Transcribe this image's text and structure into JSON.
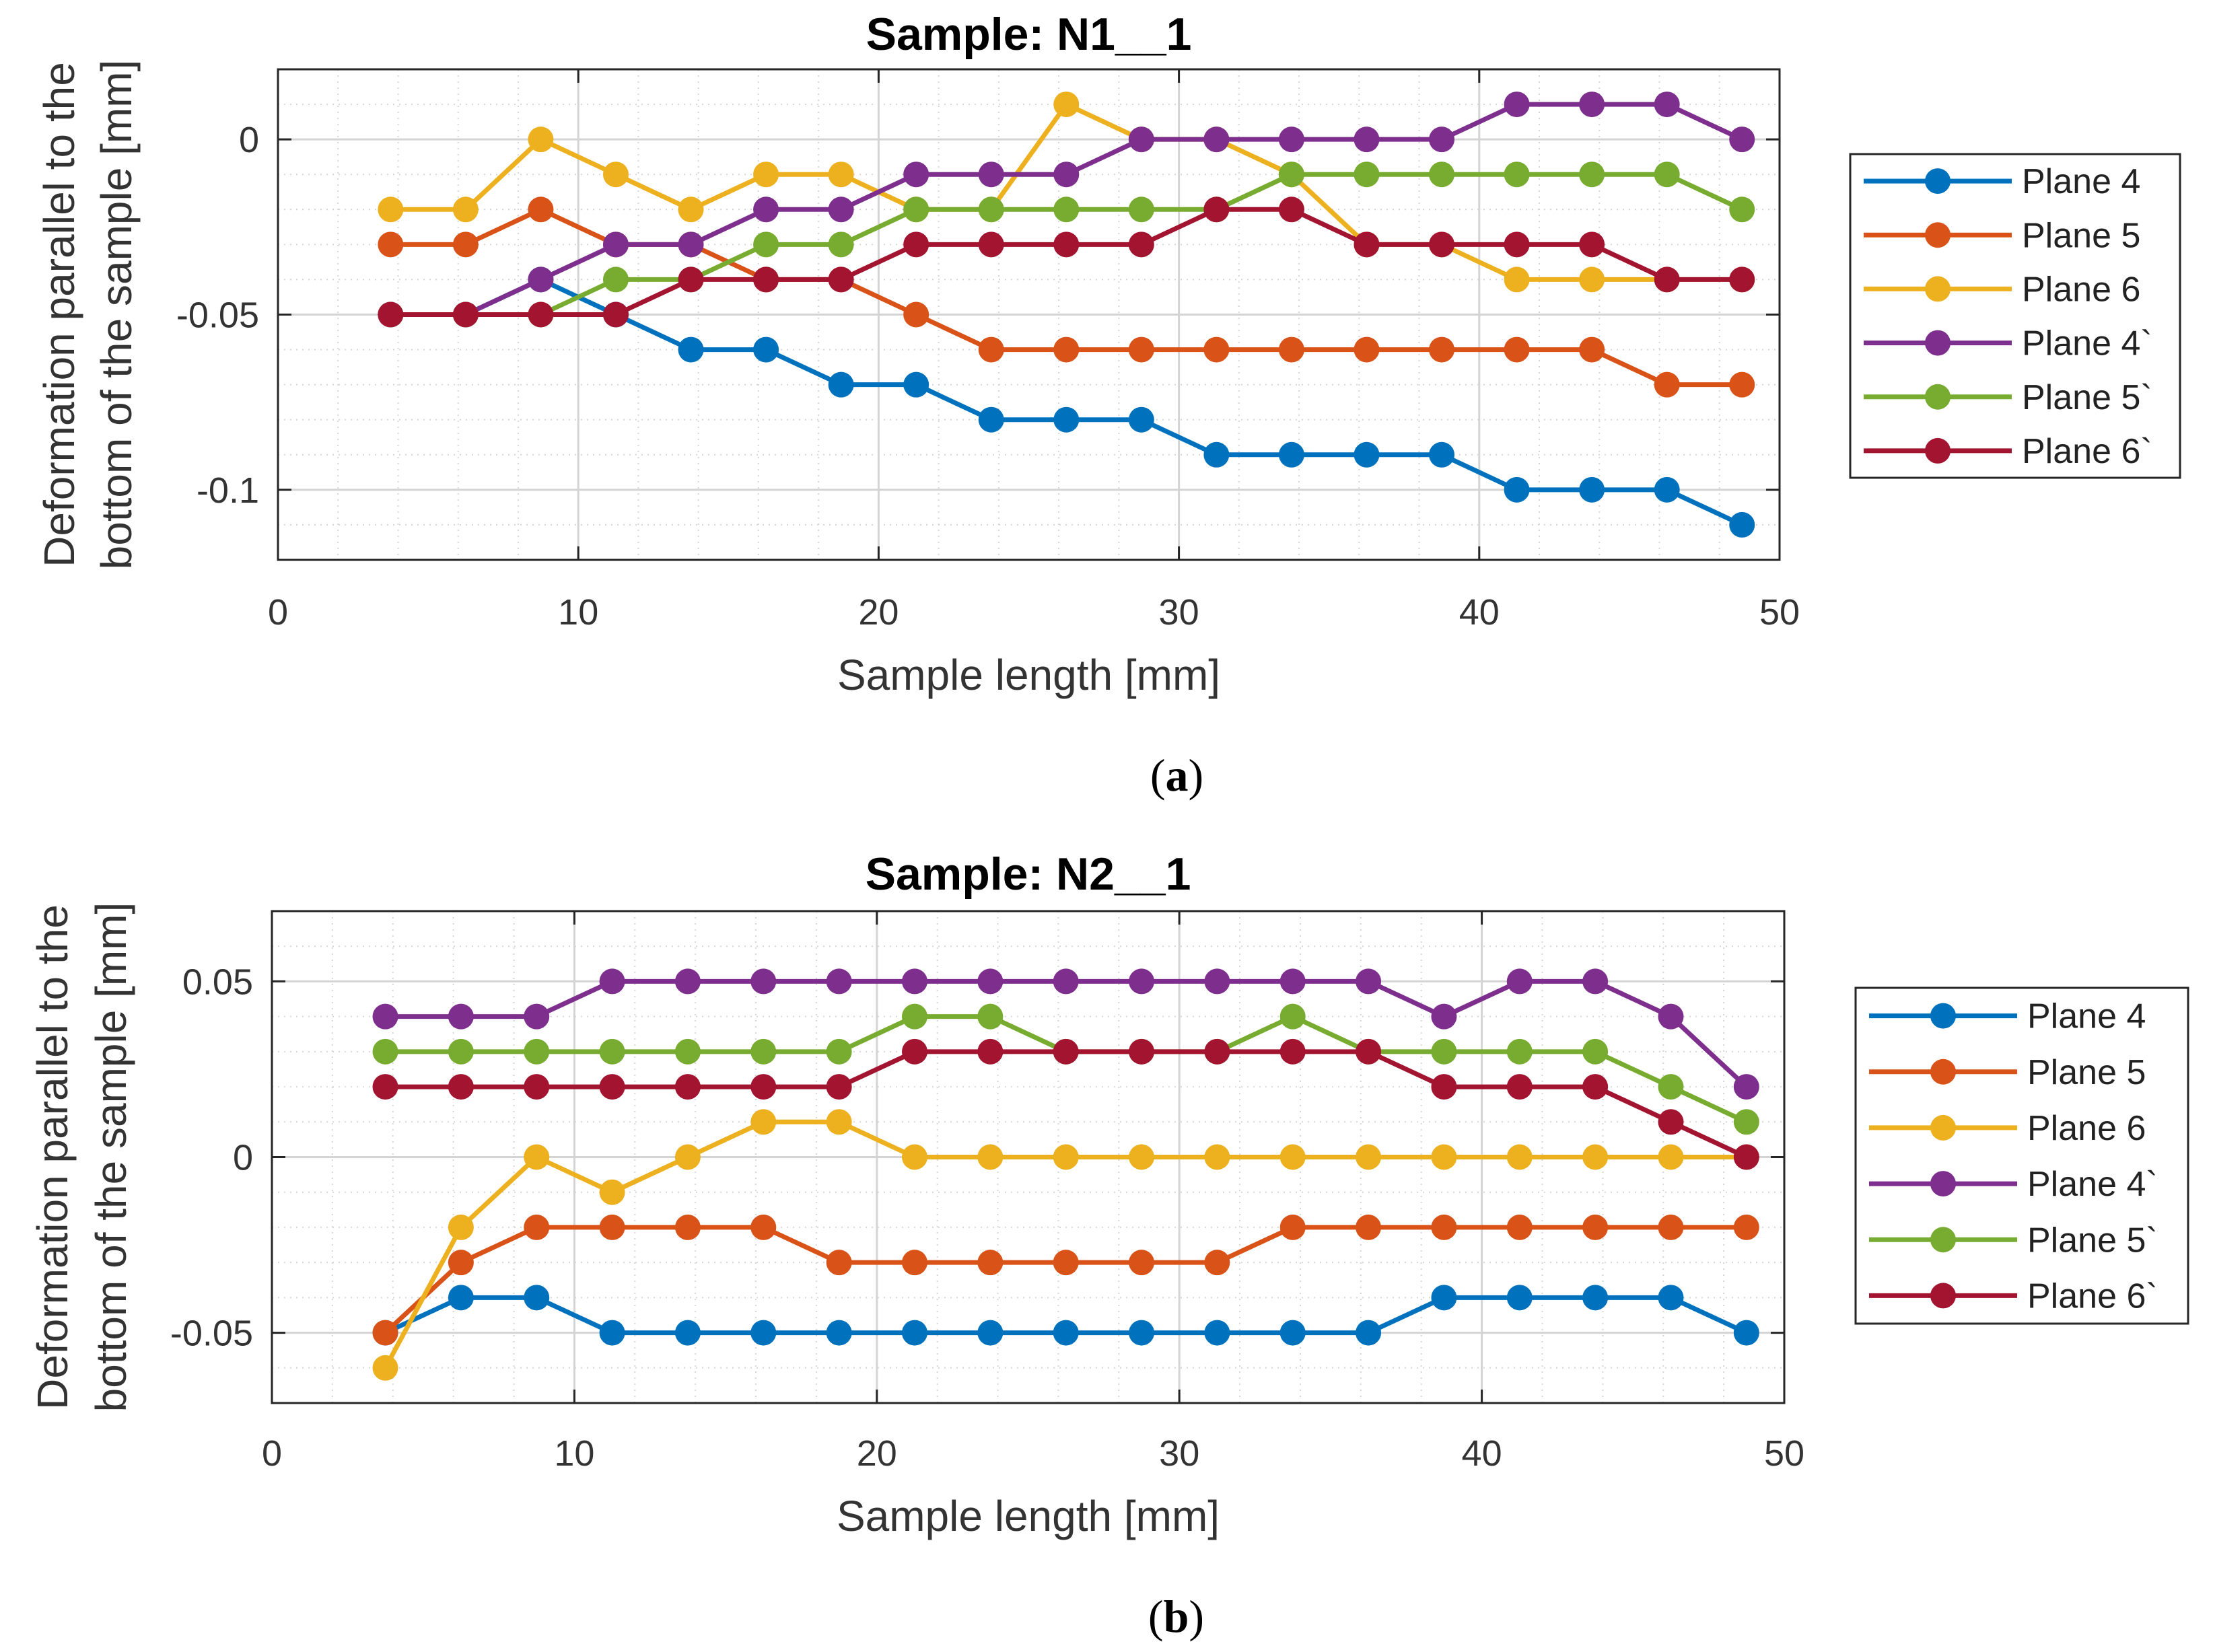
{
  "colors": {
    "plane4": "#0072BD",
    "plane5": "#D95319",
    "plane6": "#EDB120",
    "plane4p": "#7E2F8E",
    "plane5p": "#77AC30",
    "plane6p": "#A2142F"
  },
  "chart_data": [
    {
      "type": "line",
      "caption_letter": "a",
      "caption_open": "(",
      "caption_close": ")",
      "title": "Sample: N1__1",
      "xlabel": "Sample length [mm]",
      "ylabel_line1": "Deformation parallel to the",
      "ylabel_line2": "bottom of the sample [mm]",
      "xlim": [
        0,
        50
      ],
      "ylim": [
        -0.12,
        0.02
      ],
      "xticks": [
        0,
        10,
        20,
        30,
        40,
        50
      ],
      "xtick_labels": [
        "0",
        "10",
        "20",
        "30",
        "40",
        "50"
      ],
      "yticks": [
        0,
        -0.05,
        -0.1
      ],
      "ytick_labels": [
        "0",
        "-0.05",
        "-0.1"
      ],
      "grid": true,
      "legend_position": "outside-right",
      "x": [
        3.75,
        6.25,
        8.75,
        11.25,
        13.75,
        16.25,
        18.75,
        21.25,
        23.75,
        26.25,
        28.75,
        31.25,
        33.75,
        36.25,
        38.75,
        41.25,
        43.75,
        46.25,
        48.75
      ],
      "series": [
        {
          "name": "Plane 4",
          "color_key": "plane4",
          "values": [
            -0.05,
            -0.05,
            -0.04,
            -0.05,
            -0.06,
            -0.06,
            -0.07,
            -0.07,
            -0.08,
            -0.08,
            -0.08,
            -0.09,
            -0.09,
            -0.09,
            -0.09,
            -0.1,
            -0.1,
            -0.1,
            -0.11
          ]
        },
        {
          "name": "Plane 5",
          "color_key": "plane5",
          "values": [
            -0.03,
            -0.03,
            -0.02,
            -0.03,
            -0.03,
            -0.04,
            -0.04,
            -0.05,
            -0.06,
            -0.06,
            -0.06,
            -0.06,
            -0.06,
            -0.06,
            -0.06,
            -0.06,
            -0.06,
            -0.07,
            -0.07
          ]
        },
        {
          "name": "Plane 6",
          "color_key": "plane6",
          "values": [
            -0.02,
            -0.02,
            0.0,
            -0.01,
            -0.02,
            -0.01,
            -0.01,
            -0.02,
            -0.02,
            0.01,
            0.0,
            0.0,
            -0.01,
            -0.03,
            -0.03,
            -0.04,
            -0.04,
            -0.04,
            -0.04
          ]
        },
        {
          "name": "Plane 4`",
          "color_key": "plane4p",
          "values": [
            -0.05,
            -0.05,
            -0.04,
            -0.03,
            -0.03,
            -0.02,
            -0.02,
            -0.01,
            -0.01,
            -0.01,
            0.0,
            0.0,
            0.0,
            0.0,
            0.0,
            0.01,
            0.01,
            0.01,
            0.0
          ]
        },
        {
          "name": "Plane 5`",
          "color_key": "plane5p",
          "values": [
            -0.05,
            -0.05,
            -0.05,
            -0.04,
            -0.04,
            -0.03,
            -0.03,
            -0.02,
            -0.02,
            -0.02,
            -0.02,
            -0.02,
            -0.01,
            -0.01,
            -0.01,
            -0.01,
            -0.01,
            -0.01,
            -0.02
          ]
        },
        {
          "name": "Plane 6`",
          "color_key": "plane6p",
          "values": [
            -0.05,
            -0.05,
            -0.05,
            -0.05,
            -0.04,
            -0.04,
            -0.04,
            -0.03,
            -0.03,
            -0.03,
            -0.03,
            -0.02,
            -0.02,
            -0.03,
            -0.03,
            -0.03,
            -0.03,
            -0.04,
            -0.04
          ]
        }
      ]
    },
    {
      "type": "line",
      "caption_letter": "b",
      "caption_open": "(",
      "caption_close": ")",
      "title": "Sample: N2__1",
      "xlabel": "Sample length [mm]",
      "ylabel_line1": "Deformation parallel to the",
      "ylabel_line2": "bottom of the sample [mm]",
      "xlim": [
        0,
        50
      ],
      "ylim": [
        -0.07,
        0.07
      ],
      "xticks": [
        0,
        10,
        20,
        30,
        40,
        50
      ],
      "xtick_labels": [
        "0",
        "10",
        "20",
        "30",
        "40",
        "50"
      ],
      "yticks": [
        0.05,
        0,
        -0.05
      ],
      "ytick_labels": [
        "0.05",
        "0",
        "-0.05"
      ],
      "grid": true,
      "legend_position": "outside-right",
      "x": [
        3.75,
        6.25,
        8.75,
        11.25,
        13.75,
        16.25,
        18.75,
        21.25,
        23.75,
        26.25,
        28.75,
        31.25,
        33.75,
        36.25,
        38.75,
        41.25,
        43.75,
        46.25,
        48.75
      ],
      "series": [
        {
          "name": "Plane 4",
          "color_key": "plane4",
          "values": [
            -0.05,
            -0.04,
            -0.04,
            -0.05,
            -0.05,
            -0.05,
            -0.05,
            -0.05,
            -0.05,
            -0.05,
            -0.05,
            -0.05,
            -0.05,
            -0.05,
            -0.04,
            -0.04,
            -0.04,
            -0.04,
            -0.05
          ]
        },
        {
          "name": "Plane 5",
          "color_key": "plane5",
          "values": [
            -0.05,
            -0.03,
            -0.02,
            -0.02,
            -0.02,
            -0.02,
            -0.03,
            -0.03,
            -0.03,
            -0.03,
            -0.03,
            -0.03,
            -0.02,
            -0.02,
            -0.02,
            -0.02,
            -0.02,
            -0.02,
            -0.02
          ]
        },
        {
          "name": "Plane 6",
          "color_key": "plane6",
          "values": [
            -0.06,
            -0.02,
            0.0,
            -0.01,
            0.0,
            0.01,
            0.01,
            0.0,
            0.0,
            0.0,
            0.0,
            0.0,
            0.0,
            0.0,
            0.0,
            0.0,
            0.0,
            0.0,
            0.0
          ]
        },
        {
          "name": "Plane 4`",
          "color_key": "plane4p",
          "values": [
            0.04,
            0.04,
            0.04,
            0.05,
            0.05,
            0.05,
            0.05,
            0.05,
            0.05,
            0.05,
            0.05,
            0.05,
            0.05,
            0.05,
            0.04,
            0.05,
            0.05,
            0.04,
            0.02
          ]
        },
        {
          "name": "Plane 5`",
          "color_key": "plane5p",
          "values": [
            0.03,
            0.03,
            0.03,
            0.03,
            0.03,
            0.03,
            0.03,
            0.04,
            0.04,
            0.03,
            0.03,
            0.03,
            0.04,
            0.03,
            0.03,
            0.03,
            0.03,
            0.02,
            0.01
          ]
        },
        {
          "name": "Plane 6`",
          "color_key": "plane6p",
          "values": [
            0.02,
            0.02,
            0.02,
            0.02,
            0.02,
            0.02,
            0.02,
            0.03,
            0.03,
            0.03,
            0.03,
            0.03,
            0.03,
            0.03,
            0.02,
            0.02,
            0.02,
            0.01,
            0.0
          ]
        }
      ]
    }
  ]
}
